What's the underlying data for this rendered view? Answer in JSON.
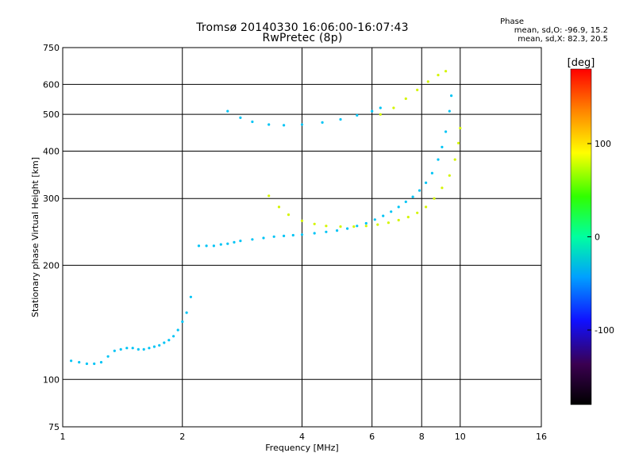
{
  "header": {
    "title_line1": "Tromsø 20140330 16:06:00-16:07:43",
    "title_line2": "RwPretec (8p)"
  },
  "phase_info": {
    "title": "Phase",
    "line_o": "mean, sd,O: -96.9, 15.2",
    "line_x": "mean, sd,X:  82.3, 20.5"
  },
  "colorbar": {
    "label": "[deg]",
    "ticks": [
      "100",
      "0",
      "-100"
    ],
    "tick_values": [
      100,
      0,
      -100
    ],
    "range": [
      -180,
      180
    ]
  },
  "chart_data": {
    "type": "scatter",
    "xlabel": "Frequency [MHz]",
    "ylabel": "Stationary phase Virtual Height [km]",
    "x_scale": "log",
    "y_scale": "log",
    "xlim": [
      1,
      16
    ],
    "ylim": [
      75,
      750
    ],
    "x_ticks": [
      1,
      2,
      4,
      6,
      8,
      10,
      16
    ],
    "y_ticks": [
      75,
      100,
      200,
      300,
      400,
      500,
      600,
      750
    ],
    "grid": true,
    "color_encoding": "phase in degrees",
    "series": [
      {
        "mode": "O",
        "phase_mean": -96.9,
        "x": [
          1.05,
          1.1,
          1.15,
          1.2,
          1.25,
          1.3,
          1.35,
          1.4,
          1.45,
          1.5,
          1.55,
          1.6,
          1.65,
          1.7,
          1.75,
          1.8,
          1.85,
          1.9,
          1.95,
          2.0,
          2.05,
          2.1,
          2.2,
          2.3,
          2.4,
          2.5,
          2.6,
          2.7,
          2.8,
          3.0,
          3.2,
          3.4,
          3.6,
          3.8,
          4.0,
          4.3,
          4.6,
          4.9,
          5.2,
          5.5,
          5.8,
          6.1,
          6.4,
          6.7,
          7.0,
          7.3,
          7.6,
          7.9,
          8.2,
          8.5,
          8.8,
          9.0,
          9.2,
          9.4,
          9.5
        ],
        "y": [
          112,
          111,
          110,
          110,
          111,
          115,
          119,
          120,
          121,
          121,
          120,
          120,
          121,
          122,
          123,
          125,
          127,
          130,
          135,
          142,
          150,
          165,
          225,
          225,
          225,
          227,
          228,
          230,
          232,
          234,
          236,
          238,
          239,
          240,
          241,
          243,
          245,
          247,
          250,
          254,
          258,
          264,
          270,
          277,
          285,
          294,
          303,
          315,
          330,
          350,
          380,
          410,
          450,
          510,
          560
        ]
      },
      {
        "mode": "O",
        "phase_mean": -96.9,
        "x": [
          2.6,
          2.8,
          3.0,
          3.3,
          3.6,
          4.0,
          4.5,
          5.0,
          5.5,
          6.0,
          6.3
        ],
        "y": [
          510,
          490,
          478,
          470,
          468,
          470,
          476,
          485,
          497,
          510,
          520
        ]
      },
      {
        "mode": "X",
        "phase_mean": 82.3,
        "x": [
          3.3,
          3.5,
          3.7,
          4.0,
          4.3,
          4.6,
          5.0,
          5.4,
          5.8,
          6.2,
          6.6,
          7.0,
          7.4,
          7.8,
          8.2,
          8.6,
          9.0,
          9.4,
          9.7,
          9.9,
          10.0
        ],
        "y": [
          305,
          285,
          272,
          262,
          257,
          254,
          253,
          253,
          254,
          256,
          259,
          263,
          268,
          275,
          285,
          300,
          320,
          345,
          380,
          420,
          460
        ]
      },
      {
        "mode": "X",
        "phase_mean": 82.3,
        "x": [
          6.3,
          6.8,
          7.3,
          7.8,
          8.3,
          8.8,
          9.2
        ],
        "y": [
          500,
          520,
          550,
          580,
          610,
          635,
          650
        ]
      }
    ]
  }
}
